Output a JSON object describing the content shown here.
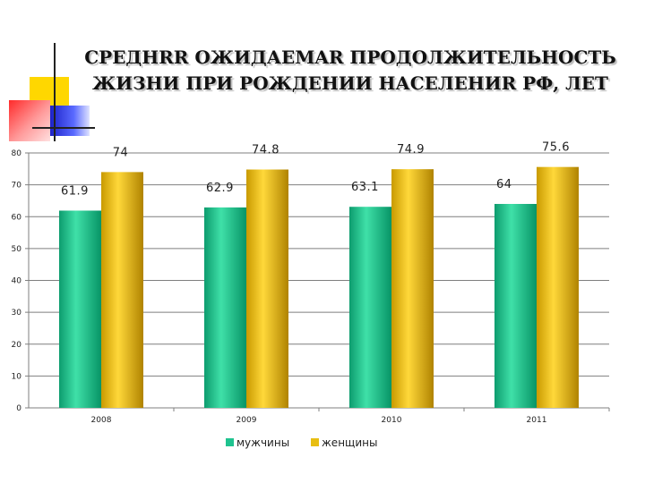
{
  "slide": {
    "title_line1": "СРЕДНRR ОЖИДАЕМAR ПРОДОЛЖИТЕЛЬНОСТЬ",
    "title_line2": "ЖИЗНИ ПРИ РОЖДЕНИИ НАСЕЛЕНИR РФ, ЛЕТ"
  },
  "chart_data": {
    "type": "bar",
    "categories": [
      "2008",
      "2009",
      "2010",
      "2011"
    ],
    "series": [
      {
        "name": "мужчины",
        "values": [
          61.9,
          62.9,
          63.1,
          64
        ],
        "color": "#1fc38f"
      },
      {
        "name": "женщины",
        "values": [
          74,
          74.8,
          74.9,
          75.6
        ],
        "color": "#e8be12"
      }
    ],
    "data_labels": {
      "мужчины": [
        "61.9",
        "62.9",
        "63.1",
        "64"
      ],
      "женщины": [
        "74",
        "74.8",
        "74.9",
        "75.6"
      ]
    },
    "y_ticks": [
      "0",
      "10",
      "20",
      "30",
      "40",
      "50",
      "60",
      "70",
      "80"
    ],
    "ylim": [
      0,
      80
    ],
    "grid": true,
    "legend": "bottom"
  }
}
